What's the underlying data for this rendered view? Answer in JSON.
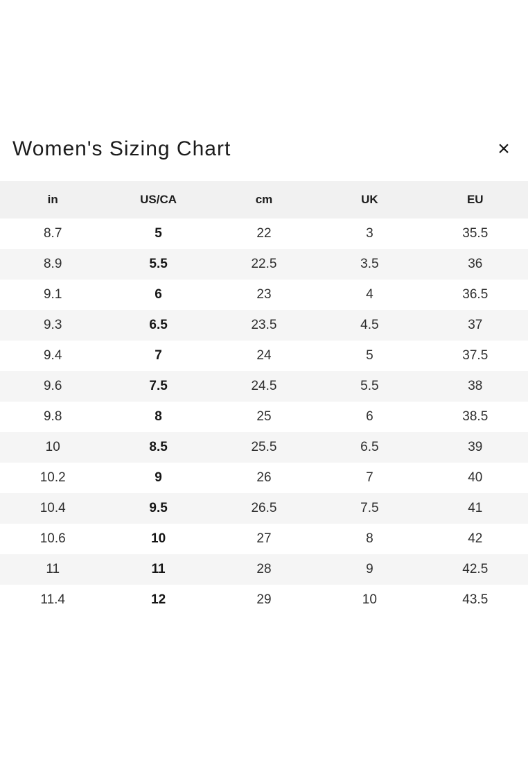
{
  "modal": {
    "title": "Women's Sizing Chart"
  },
  "icons": {
    "close_icon": "×"
  },
  "chart_data": {
    "type": "table",
    "title": "Women's Sizing Chart",
    "columns": [
      "in",
      "US/CA",
      "cm",
      "UK",
      "EU"
    ],
    "bold_column_index": 1,
    "rows": [
      [
        "8.7",
        "5",
        "22",
        "3",
        "35.5"
      ],
      [
        "8.9",
        "5.5",
        "22.5",
        "3.5",
        "36"
      ],
      [
        "9.1",
        "6",
        "23",
        "4",
        "36.5"
      ],
      [
        "9.3",
        "6.5",
        "23.5",
        "4.5",
        "37"
      ],
      [
        "9.4",
        "7",
        "24",
        "5",
        "37.5"
      ],
      [
        "9.6",
        "7.5",
        "24.5",
        "5.5",
        "38"
      ],
      [
        "9.8",
        "8",
        "25",
        "6",
        "38.5"
      ],
      [
        "10",
        "8.5",
        "25.5",
        "6.5",
        "39"
      ],
      [
        "10.2",
        "9",
        "26",
        "7",
        "40"
      ],
      [
        "10.4",
        "9.5",
        "26.5",
        "7.5",
        "41"
      ],
      [
        "10.6",
        "10",
        "27",
        "8",
        "42"
      ],
      [
        "11",
        "11",
        "28",
        "9",
        "42.5"
      ],
      [
        "11.4",
        "12",
        "29",
        "10",
        "43.5"
      ]
    ]
  },
  "colors": {
    "header_band": "#f1f1f1",
    "row_stripe": "#f5f5f5",
    "text_primary": "#1c1c1c",
    "text_secondary": "#2e2e2e",
    "background": "#ffffff"
  }
}
